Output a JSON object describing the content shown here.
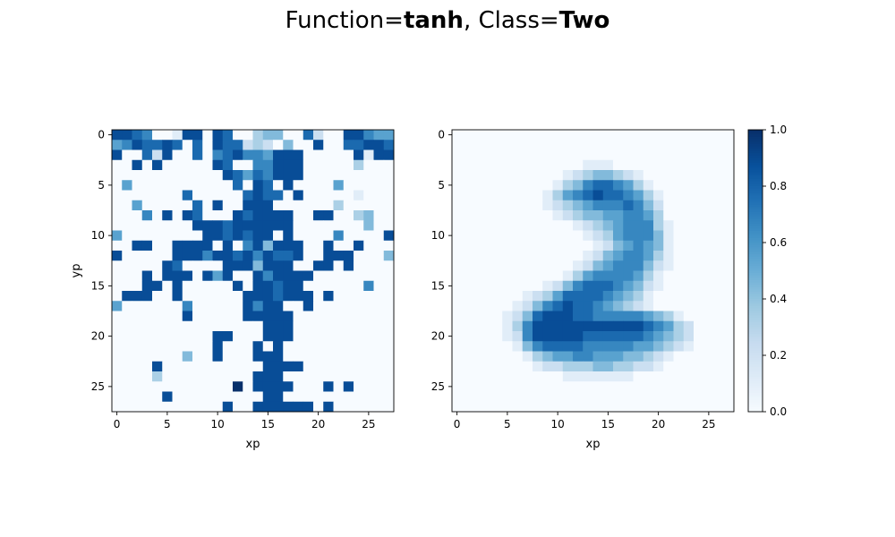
{
  "figure": {
    "title_prefix": "Function=",
    "function_name": "tanh",
    "title_separator": ", Class=",
    "class_name": "Two"
  },
  "colormap": {
    "name": "Blues",
    "low": "#f7fbff",
    "high": "#08306b"
  },
  "chart_data": [
    {
      "type": "heatmap",
      "xlabel": "xp",
      "ylabel": "yp",
      "xticks": [
        0,
        5,
        10,
        15,
        20,
        25
      ],
      "yticks": [
        0,
        5,
        10,
        15,
        20,
        25
      ],
      "shape": [
        28,
        28
      ],
      "vmin": 0,
      "vmax": 1,
      "values": [
        "8876001880870034400720088655",
        "5687787070877232040080077887",
        "8007280070678665888000008188",
        "0080800000870066888000003000",
        "0000000000087576888000000000",
        "0500000000007087080000500000",
        "0000000700000787708000001000",
        "0050000070800888000000300000",
        "0006080870008788880088003400",
        "0000000088878888880000000400",
        "5000000008878788080000600008",
        "0088008888080684888008008000",
        "8000008886887868778008880004",
        "0000087000088848880088080000",
        "0008088808580086888800000000",
        "0008808000008088788000000600",
        "0888008000000888788808000000",
        "5000000600000868800800000000",
        "0000000800000888880000000000",
        "0000000000000008880000000000",
        "0000000000880008880000000000",
        "0000000000800080800000000000",
        "0000000400800088800000000000",
        "0000800000000008888000000000",
        "0000300000000088800000000000",
        "0000000000009088880008080000",
        "0000080000000008800000000000",
        "0000000000080088888808000000"
      ]
    },
    {
      "type": "heatmap",
      "xlabel": "xp",
      "ylabel": "",
      "xticks": [
        0,
        5,
        10,
        15,
        20,
        25
      ],
      "yticks": [
        0,
        5,
        10,
        15,
        20,
        25
      ],
      "shape": [
        28,
        28
      ],
      "vmin": 0,
      "vmax": 1,
      "values": [
        "0000000000000000000000000000",
        "0000000000000000000000000000",
        "0000000000000000000000000000",
        "0000000000000111000000000000",
        "0000000000012344321000000000",
        "0000000000134677653100000000",
        "0000000001356787765310000000",
        "0000000001234566676420000000",
        "0000000000123445566530000000",
        "0000000000001234566631000000",
        "0000000000000123566641000000",
        "0000000000000012456541000000",
        "0000000000000124566531000000",
        "0000000000001245666421000000",
        "0000000000013566665310000000",
        "0000000001246777654210000000",
        "0000000123577776543100000000",
        "0000001246787765432100000000",
        "0000012478887766666543100000",
        "0000013688888888888765320000",
        "0000012688888777777654320000",
        "0000001467777666665543210000",
        "0000000134556655544321000000",
        "0000000012233344332210000000",
        "0000000000011111110000000000",
        "0000000000000000000000000000",
        "0000000000000000000000000000",
        "0000000000000000000000000000"
      ]
    }
  ],
  "colorbar": {
    "ticks": [
      "0.0",
      "0.2",
      "0.4",
      "0.6",
      "0.8",
      "1.0"
    ],
    "vmin": 0,
    "vmax": 1
  }
}
